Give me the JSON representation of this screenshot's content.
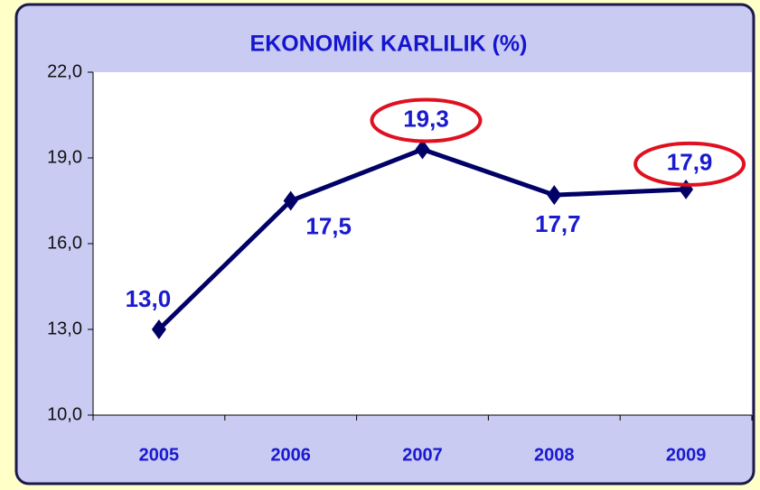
{
  "chart_data": {
    "type": "line",
    "title": "EKONOMİK KARLILIK (%)",
    "categories": [
      "2005",
      "2006",
      "2007",
      "2008",
      "2009"
    ],
    "series": [
      {
        "color": "#000066",
        "values": [
          13.0,
          17.5,
          19.3,
          17.7,
          17.9
        ],
        "value_labels": [
          "13,0",
          "17,5",
          "19,3",
          "17,7",
          "17,9"
        ]
      }
    ],
    "ylim": [
      10,
      22
    ],
    "yticks": [
      {
        "value": 10,
        "label": "10,0"
      },
      {
        "value": 13,
        "label": "13,0"
      },
      {
        "value": 16,
        "label": "16,0"
      },
      {
        "value": 19,
        "label": "19,0"
      },
      {
        "value": 22,
        "label": "22,0"
      }
    ],
    "highlighted_categories": [
      "2007",
      "2009"
    ],
    "highlight_color": "#e01020"
  }
}
